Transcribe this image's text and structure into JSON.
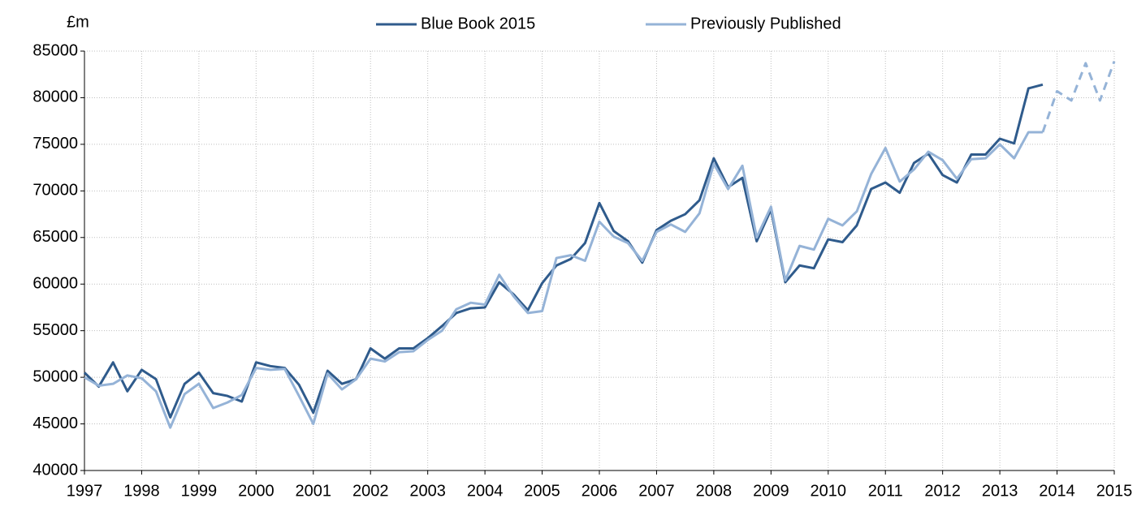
{
  "chart_data": {
    "type": "line",
    "y_unit_label": "£m",
    "x": [
      1997,
      1997.25,
      1997.5,
      1997.75,
      1998,
      1998.25,
      1998.5,
      1998.75,
      1999,
      1999.25,
      1999.5,
      1999.75,
      2000,
      2000.25,
      2000.5,
      2000.75,
      2001,
      2001.25,
      2001.5,
      2001.75,
      2002,
      2002.25,
      2002.5,
      2002.75,
      2003,
      2003.25,
      2003.5,
      2003.75,
      2004,
      2004.25,
      2004.5,
      2004.75,
      2005,
      2005.25,
      2005.5,
      2005.75,
      2006,
      2006.25,
      2006.5,
      2006.75,
      2007,
      2007.25,
      2007.5,
      2007.75,
      2008,
      2008.25,
      2008.5,
      2008.75,
      2009,
      2009.25,
      2009.5,
      2009.75,
      2010,
      2010.25,
      2010.5,
      2010.75,
      2011,
      2011.25,
      2011.5,
      2011.75,
      2012,
      2012.25,
      2012.5,
      2012.75,
      2013,
      2013.25,
      2013.5,
      2013.75,
      2014,
      2014.25,
      2014.5,
      2014.75,
      2015
    ],
    "series": [
      {
        "name": "Blue Book 2015",
        "color": "#2f5b8c",
        "values": [
          50500,
          49000,
          51600,
          48500,
          50800,
          49800,
          45700,
          49300,
          50500,
          48300,
          48000,
          47400,
          51600,
          51200,
          51000,
          49200,
          46200,
          50700,
          49300,
          49800,
          53100,
          52000,
          53100,
          53100,
          54200,
          55500,
          56900,
          57400,
          57500,
          60200,
          58900,
          57200,
          60100,
          62000,
          62700,
          64400,
          68700,
          65700,
          64600,
          62300,
          65800,
          66800,
          67500,
          69000,
          73500,
          70400,
          71400,
          64600,
          68000,
          60200,
          62000,
          61700,
          64800,
          64500,
          66300,
          70200,
          70900,
          69800,
          73000,
          74000,
          71700,
          70900,
          73900,
          73900,
          75600,
          75100,
          81000,
          81400,
          null,
          null,
          null,
          null,
          null
        ]
      },
      {
        "name": "Previously Published",
        "color": "#95b3d7",
        "dashed_from": 67,
        "values": [
          50000,
          49100,
          49300,
          50200,
          49900,
          48500,
          44600,
          48200,
          49300,
          46700,
          47300,
          48100,
          51000,
          50800,
          50900,
          48000,
          45000,
          50400,
          48700,
          49800,
          52000,
          51700,
          52700,
          52800,
          54000,
          55000,
          57300,
          58000,
          57800,
          61000,
          58700,
          56900,
          57100,
          62800,
          63100,
          62500,
          66700,
          65100,
          64400,
          62500,
          65600,
          66400,
          65600,
          67600,
          72900,
          70200,
          72700,
          65000,
          68300,
          60400,
          64100,
          63700,
          67000,
          66300,
          67800,
          71800,
          74600,
          71000,
          72300,
          74200,
          73300,
          71300,
          73400,
          73500,
          75000,
          73500,
          76300,
          76300,
          80700,
          79700,
          83700,
          79700,
          83900
        ]
      }
    ],
    "xlim": [
      1997,
      2015
    ],
    "xticks": [
      1997,
      1998,
      1999,
      2000,
      2001,
      2002,
      2003,
      2004,
      2005,
      2006,
      2007,
      2008,
      2009,
      2010,
      2011,
      2012,
      2013,
      2014,
      2015
    ],
    "ylim": [
      40000,
      85000
    ],
    "yticks": [
      40000,
      45000,
      50000,
      55000,
      60000,
      65000,
      70000,
      75000,
      80000,
      85000
    ],
    "grid": true,
    "legend": "top"
  }
}
